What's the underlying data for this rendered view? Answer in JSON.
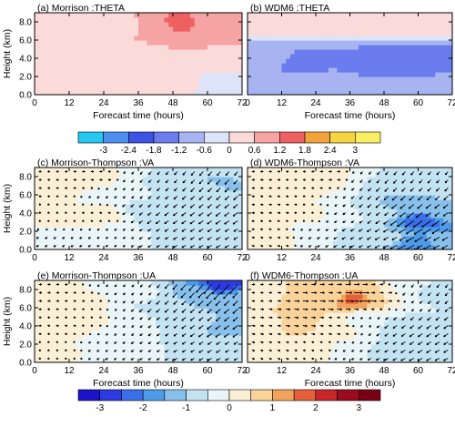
{
  "chart_data": [
    {
      "panel": "(a)",
      "title": "(a) Morrison :THETA",
      "type": "heatmap",
      "ylabel": "Height (km)",
      "xlabel": "Forecast time (hours)",
      "xlim": [
        0,
        72
      ],
      "ylim": [
        0,
        9
      ],
      "x_ticks": [
        0,
        12,
        24,
        36,
        48,
        60,
        72
      ],
      "x_tick_labels": [
        "0",
        "12",
        "24",
        "36",
        "48",
        "60",
        "72"
      ],
      "y_ticks": [
        0,
        2,
        4,
        6,
        8
      ],
      "y_tick_labels": [
        "0.0",
        "2.0",
        "4.0",
        "6.0",
        "8.0"
      ],
      "colorscale": "theta",
      "field": [
        {
          "x": 3,
          "y": 7.5,
          "value": 0.5
        },
        {
          "x": 14,
          "y": 7.8,
          "value": 0.3
        },
        {
          "x": 20,
          "y": 7.0,
          "value": 0.5
        },
        {
          "x": 30,
          "y": 7.5,
          "value": 0.4
        },
        {
          "x": 44,
          "y": 7.4,
          "value": 1.1
        },
        {
          "x": 50,
          "y": 7.8,
          "value": 1.3
        },
        {
          "x": 63,
          "y": 7.2,
          "value": 1.0
        },
        {
          "x": 68,
          "y": 8.0,
          "value": 0.9
        },
        {
          "x": 5,
          "y": 4.5,
          "value": 0.4
        },
        {
          "x": 18,
          "y": 4.0,
          "value": 0.3
        },
        {
          "x": 33,
          "y": 4.3,
          "value": 0.2
        },
        {
          "x": 47,
          "y": 4.2,
          "value": 0.6
        },
        {
          "x": 58,
          "y": 4.0,
          "value": 0.6
        },
        {
          "x": 68,
          "y": 4.5,
          "value": 0.5
        },
        {
          "x": 10,
          "y": 1.5,
          "value": 0.2
        },
        {
          "x": 27,
          "y": 1.2,
          "value": 0.3
        },
        {
          "x": 40,
          "y": 1.6,
          "value": 0.3
        },
        {
          "x": 52,
          "y": 1.0,
          "value": 0.5
        },
        {
          "x": 64,
          "y": 1.3,
          "value": -0.4
        },
        {
          "x": 62,
          "y": 0.4,
          "value": -0.5
        }
      ]
    },
    {
      "panel": "(b)",
      "title": "(b) WDM6 :THETA",
      "type": "heatmap",
      "ylabel": "",
      "xlabel": "Forecast time (hours)",
      "xlim": [
        0,
        72
      ],
      "ylim": [
        0,
        9
      ],
      "x_ticks": [
        0,
        12,
        24,
        36,
        48,
        60,
        72
      ],
      "x_tick_labels": [
        "0",
        "12",
        "24",
        "36",
        "48",
        "60",
        "72"
      ],
      "y_ticks": [
        0,
        2,
        4,
        6,
        8
      ],
      "y_tick_labels": [
        "",
        "",
        "",
        "",
        ""
      ],
      "colorscale": "theta",
      "field": [
        {
          "x": 4,
          "y": 7.8,
          "value": 0.5
        },
        {
          "x": 20,
          "y": 8.0,
          "value": 0.4
        },
        {
          "x": 35,
          "y": 7.8,
          "value": 0.3
        },
        {
          "x": 50,
          "y": 8.1,
          "value": 0.3
        },
        {
          "x": 65,
          "y": 7.8,
          "value": 0.2
        },
        {
          "x": 6,
          "y": 4.0,
          "value": -0.9
        },
        {
          "x": 12,
          "y": 4.5,
          "value": -1.2
        },
        {
          "x": 20,
          "y": 3.5,
          "value": -1.5
        },
        {
          "x": 30,
          "y": 4.0,
          "value": -1.2
        },
        {
          "x": 40,
          "y": 3.2,
          "value": -1.3
        },
        {
          "x": 48,
          "y": 4.3,
          "value": -1.5
        },
        {
          "x": 56,
          "y": 3.2,
          "value": -1.6
        },
        {
          "x": 64,
          "y": 4.0,
          "value": -1.4
        },
        {
          "x": 70,
          "y": 3.0,
          "value": -1.2
        },
        {
          "x": 6,
          "y": 1.2,
          "value": -0.8
        },
        {
          "x": 18,
          "y": 1.0,
          "value": -0.9
        },
        {
          "x": 30,
          "y": 1.4,
          "value": -0.9
        },
        {
          "x": 42,
          "y": 1.0,
          "value": -1.0
        },
        {
          "x": 56,
          "y": 1.2,
          "value": -1.1
        },
        {
          "x": 68,
          "y": 1.0,
          "value": -1.0
        }
      ]
    },
    {
      "panel": "(c)",
      "title": "(c) Morrison-Thompson :VA",
      "type": "heatmap",
      "ylabel": "Height (km)",
      "xlabel": "",
      "xlim": [
        0,
        72
      ],
      "ylim": [
        0,
        9
      ],
      "x_ticks": [
        0,
        12,
        24,
        36,
        48,
        60,
        72
      ],
      "x_tick_labels": [
        "0",
        "12",
        "24",
        "36",
        "48",
        "60",
        "72"
      ],
      "y_ticks": [
        0,
        2,
        4,
        6,
        8
      ],
      "y_tick_labels": [
        "0.0",
        "2.0",
        "4.0",
        "6.0",
        "8.0"
      ],
      "colorscale": "wind",
      "field": [
        {
          "x": 6,
          "y": 7.0,
          "value": 0.2
        },
        {
          "x": 20,
          "y": 7.8,
          "value": 0.3
        },
        {
          "x": 28,
          "y": 6.0,
          "value": -0.3
        },
        {
          "x": 40,
          "y": 7.5,
          "value": -0.5
        },
        {
          "x": 48,
          "y": 7.2,
          "value": -0.6
        },
        {
          "x": 60,
          "y": 6.8,
          "value": -0.9
        },
        {
          "x": 66,
          "y": 7.5,
          "value": -1.1
        },
        {
          "x": 70,
          "y": 8.3,
          "value": -0.8
        },
        {
          "x": 10,
          "y": 3.5,
          "value": 0.1
        },
        {
          "x": 24,
          "y": 4.0,
          "value": 0.2
        },
        {
          "x": 36,
          "y": 4.5,
          "value": -0.6
        },
        {
          "x": 46,
          "y": 3.5,
          "value": -0.8
        },
        {
          "x": 57,
          "y": 4.0,
          "value": -0.9
        },
        {
          "x": 67,
          "y": 3.8,
          "value": -1.0
        },
        {
          "x": 12,
          "y": 1.0,
          "value": -0.3
        },
        {
          "x": 28,
          "y": 1.2,
          "value": -0.2
        },
        {
          "x": 42,
          "y": 1.0,
          "value": -0.5
        },
        {
          "x": 54,
          "y": 1.0,
          "value": -0.7
        },
        {
          "x": 62,
          "y": 1.2,
          "value": -0.8
        },
        {
          "x": 70,
          "y": 1.4,
          "value": -0.7
        }
      ]
    },
    {
      "panel": "(d)",
      "title": "(d) WDM6-Thompson :VA",
      "type": "heatmap",
      "ylabel": "",
      "xlabel": "",
      "xlim": [
        0,
        72
      ],
      "ylim": [
        0,
        9
      ],
      "x_ticks": [
        0,
        12,
        24,
        36,
        48,
        60,
        72
      ],
      "x_tick_labels": [
        "0",
        "12",
        "24",
        "36",
        "48",
        "60",
        "72"
      ],
      "y_ticks": [
        0,
        2,
        4,
        6,
        8
      ],
      "y_tick_labels": [
        "",
        "",
        "",
        "",
        ""
      ],
      "colorscale": "wind",
      "field": [
        {
          "x": 6,
          "y": 7.5,
          "value": 0.3
        },
        {
          "x": 18,
          "y": 7.5,
          "value": 0.2
        },
        {
          "x": 30,
          "y": 7.8,
          "value": 0.4
        },
        {
          "x": 40,
          "y": 7.5,
          "value": -0.5
        },
        {
          "x": 50,
          "y": 7.0,
          "value": -0.8
        },
        {
          "x": 62,
          "y": 7.5,
          "value": -0.7
        },
        {
          "x": 70,
          "y": 8.2,
          "value": -0.6
        },
        {
          "x": 10,
          "y": 4.5,
          "value": 0.3
        },
        {
          "x": 22,
          "y": 4.0,
          "value": 0.1
        },
        {
          "x": 34,
          "y": 3.8,
          "value": -0.4
        },
        {
          "x": 46,
          "y": 4.2,
          "value": -0.7
        },
        {
          "x": 54,
          "y": 5.0,
          "value": -1.2
        },
        {
          "x": 62,
          "y": 3.2,
          "value": -2.3
        },
        {
          "x": 68,
          "y": 4.0,
          "value": -1.0
        },
        {
          "x": 10,
          "y": 1.0,
          "value": 0.3
        },
        {
          "x": 24,
          "y": 1.2,
          "value": -0.4
        },
        {
          "x": 38,
          "y": 1.0,
          "value": -0.6
        },
        {
          "x": 50,
          "y": 1.3,
          "value": -0.9
        },
        {
          "x": 60,
          "y": 0.7,
          "value": -2.0
        },
        {
          "x": 68,
          "y": 1.0,
          "value": -1.2
        }
      ]
    },
    {
      "panel": "(e)",
      "title": "(e) Morrison-Thompson :UA",
      "type": "heatmap",
      "ylabel": "Height (km)",
      "xlabel": "Forecast time (hours)",
      "xlim": [
        0,
        72
      ],
      "ylim": [
        0,
        9
      ],
      "x_ticks": [
        0,
        12,
        24,
        36,
        48,
        60,
        72
      ],
      "x_tick_labels": [
        "0",
        "12",
        "24",
        "36",
        "48",
        "60",
        "72"
      ],
      "y_ticks": [
        0,
        2,
        4,
        6,
        8
      ],
      "y_tick_labels": [
        "0.0",
        "2.0",
        "4.0",
        "6.0",
        "8.0"
      ],
      "colorscale": "wind",
      "field": [
        {
          "x": 6,
          "y": 7.5,
          "value": 0.3
        },
        {
          "x": 18,
          "y": 7.0,
          "value": 0.2
        },
        {
          "x": 28,
          "y": 8.0,
          "value": -0.3
        },
        {
          "x": 38,
          "y": 7.5,
          "value": -0.4
        },
        {
          "x": 46,
          "y": 6.5,
          "value": -0.8
        },
        {
          "x": 56,
          "y": 7.6,
          "value": -1.3
        },
        {
          "x": 65,
          "y": 8.5,
          "value": -2.6
        },
        {
          "x": 70,
          "y": 7.0,
          "value": -1.2
        },
        {
          "x": 8,
          "y": 4.0,
          "value": 0.2
        },
        {
          "x": 20,
          "y": 4.5,
          "value": 0.1
        },
        {
          "x": 32,
          "y": 4.0,
          "value": -0.3
        },
        {
          "x": 44,
          "y": 4.0,
          "value": -0.5
        },
        {
          "x": 56,
          "y": 4.5,
          "value": -0.9
        },
        {
          "x": 66,
          "y": 4.0,
          "value": -1.1
        },
        {
          "x": 10,
          "y": 1.0,
          "value": 0.1
        },
        {
          "x": 24,
          "y": 1.2,
          "value": -0.3
        },
        {
          "x": 38,
          "y": 1.0,
          "value": -0.4
        },
        {
          "x": 52,
          "y": 1.0,
          "value": -0.6
        },
        {
          "x": 62,
          "y": 1.2,
          "value": -0.8
        },
        {
          "x": 70,
          "y": 1.0,
          "value": -0.6
        }
      ]
    },
    {
      "panel": "(f)",
      "title": "(f) WDM6-Thompson :UA",
      "type": "heatmap",
      "ylabel": "",
      "xlabel": "Forecast time (hours)",
      "xlim": [
        0,
        72
      ],
      "ylim": [
        0,
        9
      ],
      "x_ticks": [
        0,
        12,
        24,
        36,
        48,
        60,
        72
      ],
      "x_tick_labels": [
        "0",
        "12",
        "24",
        "36",
        "48",
        "60",
        "72"
      ],
      "y_ticks": [
        0,
        2,
        4,
        6,
        8
      ],
      "y_tick_labels": [
        "",
        "",
        "",
        "",
        ""
      ],
      "colorscale": "wind",
      "field": [
        {
          "x": 5,
          "y": 7.5,
          "value": 0.3
        },
        {
          "x": 14,
          "y": 7.8,
          "value": 0.5
        },
        {
          "x": 22,
          "y": 7.0,
          "value": 0.9
        },
        {
          "x": 30,
          "y": 7.6,
          "value": 0.6
        },
        {
          "x": 37,
          "y": 7.2,
          "value": 1.6
        },
        {
          "x": 46,
          "y": 7.5,
          "value": 0.5
        },
        {
          "x": 58,
          "y": 8.0,
          "value": -0.5
        },
        {
          "x": 68,
          "y": 7.5,
          "value": -0.6
        },
        {
          "x": 6,
          "y": 4.0,
          "value": 0.4
        },
        {
          "x": 18,
          "y": 4.2,
          "value": 0.6
        },
        {
          "x": 30,
          "y": 3.8,
          "value": 0.4
        },
        {
          "x": 42,
          "y": 4.5,
          "value": -0.2
        },
        {
          "x": 52,
          "y": 4.0,
          "value": -0.7
        },
        {
          "x": 64,
          "y": 3.5,
          "value": -0.9
        },
        {
          "x": 10,
          "y": 1.0,
          "value": 0.3
        },
        {
          "x": 24,
          "y": 1.2,
          "value": 0.2
        },
        {
          "x": 36,
          "y": 1.0,
          "value": -0.3
        },
        {
          "x": 48,
          "y": 1.0,
          "value": -0.6
        },
        {
          "x": 60,
          "y": 1.0,
          "value": -0.9
        },
        {
          "x": 70,
          "y": 1.0,
          "value": -0.8
        }
      ]
    }
  ],
  "colorbars": {
    "theta": {
      "tick_labels": [
        "-3",
        "-2.4",
        "-1.8",
        "-1.2",
        "-0.6",
        "0",
        "0.6",
        "1.2",
        "1.8",
        "2.4",
        "3"
      ],
      "levels": [
        -3,
        -2.4,
        -1.8,
        -1.2,
        -0.6,
        0,
        0.6,
        1.2,
        1.8,
        2.4,
        3
      ],
      "colors": [
        "#22c8f0",
        "#4d8ef0",
        "#3b54e6",
        "#6b7cee",
        "#a8b4f2",
        "#dde3f8",
        "#fbdada",
        "#f6a3a3",
        "#ef6161",
        "#f3a33a",
        "#f6d340",
        "#f9ee60"
      ]
    },
    "wind": {
      "tick_labels": [
        "-3",
        "-2",
        "-1",
        "0",
        "1",
        "2",
        "3"
      ],
      "levels": [
        -3,
        -2.5,
        -2,
        -1.5,
        -1,
        -0.5,
        0,
        0.5,
        1,
        1.5,
        2,
        2.5,
        3
      ],
      "colors": [
        "#1c12c8",
        "#2d3ae2",
        "#3b6fea",
        "#4d9ae8",
        "#88c0ec",
        "#c4e3f2",
        "#eaf5f8",
        "#fbefd6",
        "#f9d39a",
        "#f3a25c",
        "#e6603a",
        "#c8262a",
        "#9c0a1e",
        "#7a0015"
      ]
    }
  }
}
